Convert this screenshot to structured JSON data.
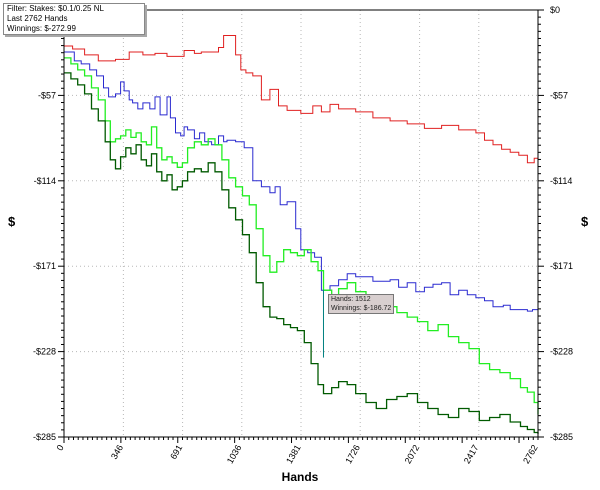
{
  "filter_box": {
    "line1": "Filter: Stakes: $0.1/0.25 NL",
    "line2": "Last  2762 Hands",
    "line3": "Winnings: $-272.99"
  },
  "tooltip": {
    "line1": "Hands: 1512",
    "line2": "Winnings: $-186.72"
  },
  "colors": {
    "red": "#e02020",
    "blue": "#2a2ad0",
    "bright_green": "#22ee22",
    "dark_green": "#005a00"
  },
  "chart_data": {
    "type": "line",
    "xlabel": "Hands",
    "ylabel": "$",
    "xlim": [
      0,
      2762
    ],
    "ylim": [
      -285,
      0
    ],
    "x_ticks": [
      "0",
      "346",
      "691",
      "1036",
      "1381",
      "1726",
      "2072",
      "2417",
      "2762"
    ],
    "y_ticks_left": [
      "-$57",
      "-$114",
      "-$171",
      "-$228",
      "-$285"
    ],
    "y_ticks_right": [
      "$0",
      "-$57",
      "-$114",
      "-$171",
      "-$228",
      "-$285"
    ],
    "grid": true,
    "series": [
      {
        "color": "red",
        "x": [
          0,
          50,
          120,
          200,
          300,
          380,
          460,
          530,
          600,
          700,
          760,
          800,
          900,
          930,
          1000,
          1030,
          1060,
          1100,
          1150,
          1200,
          1250,
          1300,
          1380,
          1450,
          1500,
          1550,
          1600,
          1700,
          1800,
          1900,
          2000,
          2100,
          2200,
          2300,
          2400,
          2450,
          2500,
          2550,
          2600,
          2650,
          2700,
          2740,
          2762
        ],
        "y": [
          -24,
          -26,
          -30,
          -34,
          -33,
          -28,
          -30,
          -29,
          -31,
          -27,
          -29,
          -28,
          -25,
          -17,
          -30,
          -40,
          -42,
          -44,
          -60,
          -53,
          -64,
          -67,
          -69,
          -64,
          -68,
          -63,
          -66,
          -68,
          -72,
          -74,
          -76,
          -79,
          -77,
          -80,
          -82,
          -87,
          -90,
          -93,
          -95,
          -97,
          -102,
          -99,
          -84
        ]
      },
      {
        "color": "blue",
        "x": [
          0,
          60,
          100,
          150,
          190,
          230,
          260,
          300,
          330,
          350,
          380,
          400,
          430,
          460,
          500,
          530,
          560,
          600,
          620,
          650,
          680,
          700,
          720,
          760,
          790,
          820,
          860,
          900,
          930,
          950,
          1000,
          1050,
          1100,
          1150,
          1200,
          1230,
          1260,
          1300,
          1350,
          1380,
          1420,
          1460,
          1500,
          1512,
          1550,
          1600,
          1650,
          1700,
          1800,
          1900,
          1950,
          2000,
          2050,
          2100,
          2150,
          2200,
          2250,
          2300,
          2350,
          2400,
          2450,
          2500,
          2560,
          2600,
          2650,
          2700,
          2730,
          2762
        ],
        "y": [
          -28,
          -34,
          -36,
          -40,
          -44,
          -52,
          -58,
          -56,
          -48,
          -54,
          -60,
          -62,
          -66,
          -62,
          -66,
          -58,
          -70,
          -58,
          -72,
          -82,
          -84,
          -78,
          -80,
          -86,
          -82,
          -88,
          -90,
          -84,
          -88,
          -87,
          -88,
          -92,
          -114,
          -118,
          -122,
          -118,
          -130,
          -128,
          -146,
          -160,
          -162,
          -165,
          -187,
          -187,
          -184,
          -180,
          -176,
          -178,
          -181,
          -180,
          -185,
          -182,
          -188,
          -185,
          -183,
          -182,
          -190,
          -187,
          -190,
          -192,
          -194,
          -198,
          -197,
          -200,
          -200,
          -201,
          -200,
          -215
        ]
      },
      {
        "color": "bright_green",
        "x": [
          0,
          40,
          80,
          120,
          160,
          200,
          240,
          270,
          300,
          330,
          360,
          390,
          420,
          450,
          480,
          510,
          540,
          570,
          600,
          630,
          660,
          690,
          720,
          760,
          800,
          840,
          880,
          920,
          960,
          1000,
          1040,
          1080,
          1120,
          1160,
          1200,
          1240,
          1280,
          1320,
          1360,
          1400,
          1440,
          1480,
          1512,
          1560,
          1600,
          1650,
          1700,
          1760,
          1820,
          1880,
          1940,
          2000,
          2060,
          2120,
          2180,
          2240,
          2300,
          2360,
          2420,
          2480,
          2540,
          2600,
          2660,
          2700,
          2740,
          2762
        ],
        "y": [
          -32,
          -36,
          -40,
          -44,
          -52,
          -60,
          -74,
          -88,
          -86,
          -84,
          -80,
          -85,
          -82,
          -88,
          -90,
          -78,
          -92,
          -100,
          -98,
          -102,
          -105,
          -102,
          -92,
          -88,
          -90,
          -86,
          -90,
          -100,
          -112,
          -118,
          -124,
          -130,
          -146,
          -164,
          -175,
          -168,
          -160,
          -162,
          -164,
          -160,
          -168,
          -174,
          -187,
          -192,
          -186,
          -182,
          -188,
          -190,
          -194,
          -198,
          -202,
          -205,
          -208,
          -214,
          -210,
          -218,
          -222,
          -226,
          -236,
          -240,
          -242,
          -246,
          -252,
          -255,
          -262,
          -270
        ]
      },
      {
        "color": "dark_green",
        "x": [
          0,
          40,
          80,
          120,
          160,
          200,
          240,
          270,
          300,
          330,
          360,
          390,
          420,
          450,
          480,
          510,
          540,
          570,
          600,
          630,
          660,
          690,
          720,
          760,
          800,
          840,
          880,
          920,
          960,
          1000,
          1040,
          1080,
          1120,
          1160,
          1200,
          1240,
          1280,
          1320,
          1360,
          1400,
          1440,
          1480,
          1512,
          1560,
          1600,
          1650,
          1700,
          1760,
          1820,
          1880,
          1940,
          2000,
          2060,
          2120,
          2180,
          2240,
          2300,
          2360,
          2420,
          2480,
          2540,
          2600,
          2660,
          2700,
          2740,
          2762
        ],
        "y": [
          -42,
          -46,
          -50,
          -56,
          -66,
          -74,
          -88,
          -100,
          -106,
          -98,
          -92,
          -96,
          -90,
          -100,
          -104,
          -96,
          -108,
          -114,
          -110,
          -120,
          -118,
          -114,
          -108,
          -106,
          -108,
          -102,
          -108,
          -120,
          -132,
          -140,
          -150,
          -162,
          -182,
          -198,
          -205,
          -206,
          -210,
          -212,
          -214,
          -222,
          -236,
          -250,
          -256,
          -252,
          -248,
          -250,
          -256,
          -262,
          -266,
          -260,
          -258,
          -256,
          -262,
          -266,
          -270,
          -272,
          -266,
          -268,
          -274,
          -272,
          -270,
          -275,
          -278,
          -280,
          -282,
          -283
        ]
      }
    ]
  }
}
